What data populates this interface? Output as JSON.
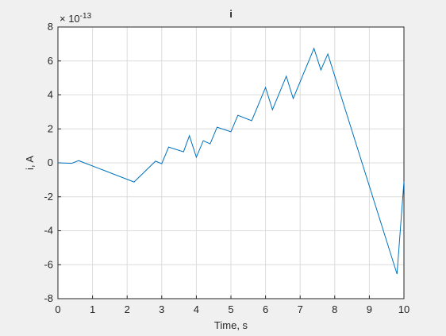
{
  "chart_data": {
    "type": "line",
    "title": "i",
    "x_label": "Time, s",
    "y_label": "i, A",
    "y_multiplier": {
      "base": "× 10",
      "exponent": "-13"
    },
    "x": [
      0,
      0.4,
      0.6,
      2.2,
      2.82,
      3.0,
      3.2,
      3.63,
      3.8,
      4.0,
      4.2,
      4.4,
      4.6,
      5.0,
      5.2,
      5.6,
      6.0,
      6.2,
      6.6,
      6.8,
      7.4,
      7.6,
      7.8,
      9.8,
      10
    ],
    "series": [
      {
        "name": "i",
        "color": "#0072bd",
        "values": [
          0,
          -0.03,
          0.13,
          -1.13,
          0.1,
          -0.05,
          0.93,
          0.65,
          1.6,
          0.33,
          1.3,
          1.12,
          2.1,
          1.83,
          2.8,
          2.48,
          4.44,
          3.13,
          5.1,
          3.79,
          6.74,
          5.47,
          6.41,
          -6.55,
          -1.1
        ]
      }
    ],
    "xlim": [
      0,
      10
    ],
    "xticks": [
      0,
      1,
      2,
      3,
      4,
      5,
      6,
      7,
      8,
      9,
      10
    ],
    "ylim": [
      -8,
      8
    ],
    "yticks": [
      -8,
      -6,
      -4,
      -2,
      0,
      2,
      4,
      6,
      8
    ],
    "grid": true
  }
}
